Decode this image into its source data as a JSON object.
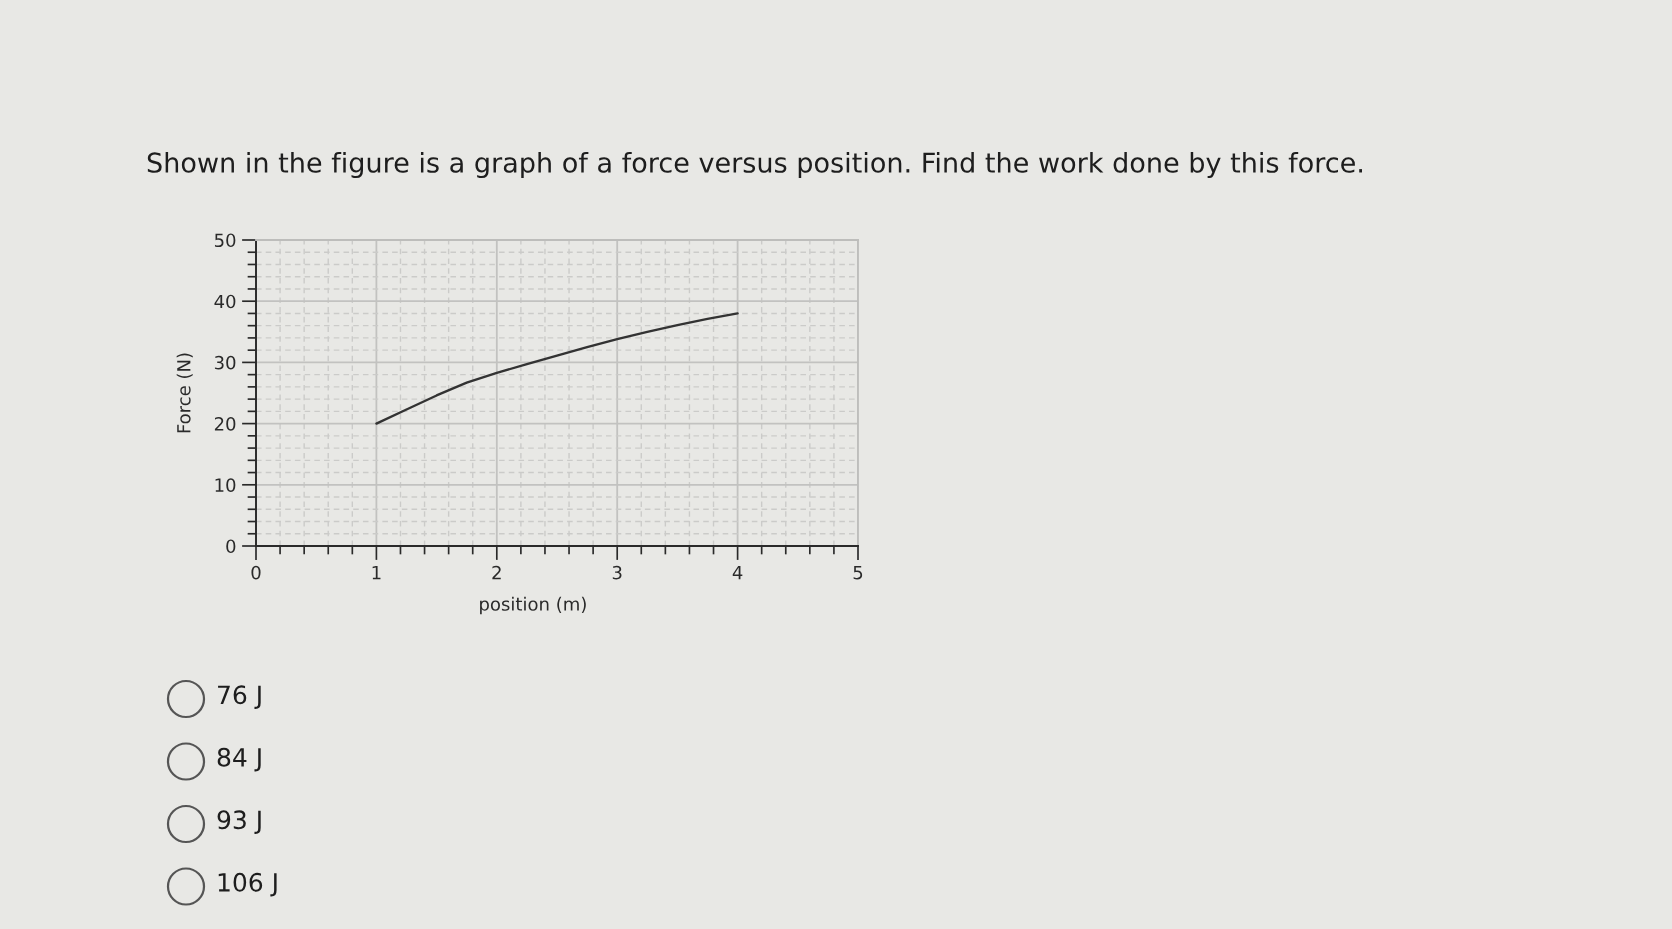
{
  "chart_data": {
    "type": "line",
    "title": "Shown in the figure is a graph of a force versus position. Find the work done by this force.",
    "xlabel": "position (m)",
    "ylabel": "Force (N)",
    "x": [
      1,
      1.25,
      1.5,
      1.75,
      2,
      2.25,
      2.5,
      2.75,
      3,
      3.25,
      3.5,
      3.75,
      4
    ],
    "series": [
      {
        "color": "#333333",
        "values": [
          20,
          22.3,
          24.6,
          26.7,
          28.3,
          29.7,
          31.1,
          32.5,
          33.8,
          35.0,
          36.1,
          37.1,
          38.0
        ]
      }
    ],
    "xlim": [
      0,
      5
    ],
    "ylim": [
      0,
      50
    ],
    "xticks": [
      0,
      {
        "value": 0.2,
        "label": null
      },
      {
        "value": 0.4,
        "label": null
      },
      {
        "value": 0.6,
        "label": null
      },
      {
        "value": 0.8,
        "label": null
      },
      1,
      {
        "value": 1.2,
        "label": null
      },
      {
        "value": 1.4,
        "label": null
      },
      {
        "value": 1.6,
        "label": null
      },
      {
        "value": 1.8,
        "label": null
      },
      2,
      {
        "value": 2.2,
        "label": null
      },
      {
        "value": 2.4,
        "label": null
      },
      {
        "value": 2.6,
        "label": null
      },
      {
        "value": 2.8,
        "label": null
      },
      3,
      {
        "value": 3.2,
        "label": null
      },
      {
        "value": 3.4,
        "label": null
      },
      {
        "value": 3.6,
        "label": null
      },
      {
        "value": 3.8,
        "label": null
      },
      4,
      {
        "value": 4.2,
        "label": null
      },
      {
        "value": 4.4,
        "label": null
      },
      {
        "value": 4.6,
        "label": null
      },
      {
        "value": 4.8,
        "label": null
      },
      5
    ],
    "yticks": [
      0,
      {
        "value": 2,
        "label": null
      },
      {
        "value": 4,
        "label": null
      },
      {
        "value": 6,
        "label": null
      },
      {
        "value": 8,
        "label": null
      },
      10,
      {
        "value": 12,
        "label": null
      },
      {
        "value": 14,
        "label": null
      },
      {
        "value": 16,
        "label": null
      },
      {
        "value": 18,
        "label": null
      },
      20,
      {
        "value": 22,
        "label": null
      },
      {
        "value": 24,
        "label": null
      },
      {
        "value": 26,
        "label": null
      },
      {
        "value": 28,
        "label": null
      },
      30,
      {
        "value": 32,
        "label": null
      },
      {
        "value": 34,
        "label": null
      },
      {
        "value": 36,
        "label": null
      },
      {
        "value": 38,
        "label": null
      },
      40,
      {
        "value": 42,
        "label": null
      },
      {
        "value": 44,
        "label": null
      },
      {
        "value": 46,
        "label": null
      },
      {
        "value": 48,
        "label": null
      },
      50
    ],
    "grid": true,
    "line_style": "solid",
    "annotations": [
      "76 J",
      "84 J",
      "93 J",
      "106 J"
    ]
  }
}
